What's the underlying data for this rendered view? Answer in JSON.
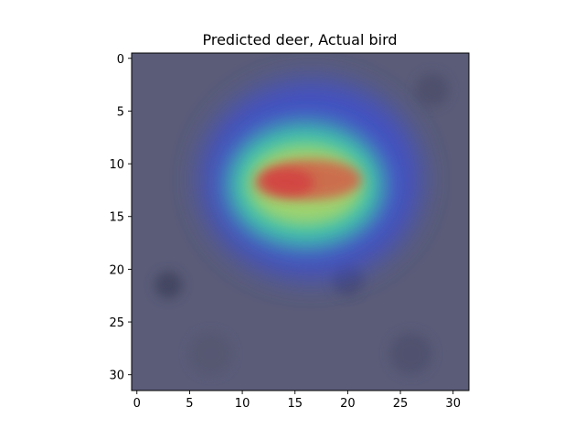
{
  "chart_data": {
    "type": "heatmap",
    "title": "Predicted deer, Actual bird",
    "xlabel": "",
    "ylabel": "",
    "image_size": [
      32,
      32
    ],
    "xlim": [
      -0.5,
      31.5
    ],
    "ylim": [
      31.5,
      -0.5
    ],
    "xticks": [
      0,
      5,
      10,
      15,
      20,
      25,
      30
    ],
    "yticks": [
      0,
      5,
      10,
      15,
      20,
      25,
      30
    ],
    "grid": false,
    "colormap": "jet",
    "overlay": "class activation heatmap blended over a 32x32 grey input image",
    "background_color": "#5a5c78",
    "activation_regions": [
      {
        "center": [
          16.5,
          11.5
        ],
        "spread": [
          10.5,
          9.5
        ],
        "peak": 0.42,
        "description": "outer blue halo"
      },
      {
        "center": [
          16.0,
          12.0
        ],
        "spread": [
          7.5,
          6.0
        ],
        "peak": 0.45,
        "description": "cyan-green ring"
      },
      {
        "center": [
          16.0,
          12.0
        ],
        "spread": [
          5.5,
          3.8
        ],
        "peak": 0.3,
        "description": "yellow band"
      },
      {
        "center": [
          16.5,
          11.5
        ],
        "spread": [
          4.8,
          1.9
        ],
        "peak": 0.35,
        "description": "red core"
      }
    ]
  }
}
